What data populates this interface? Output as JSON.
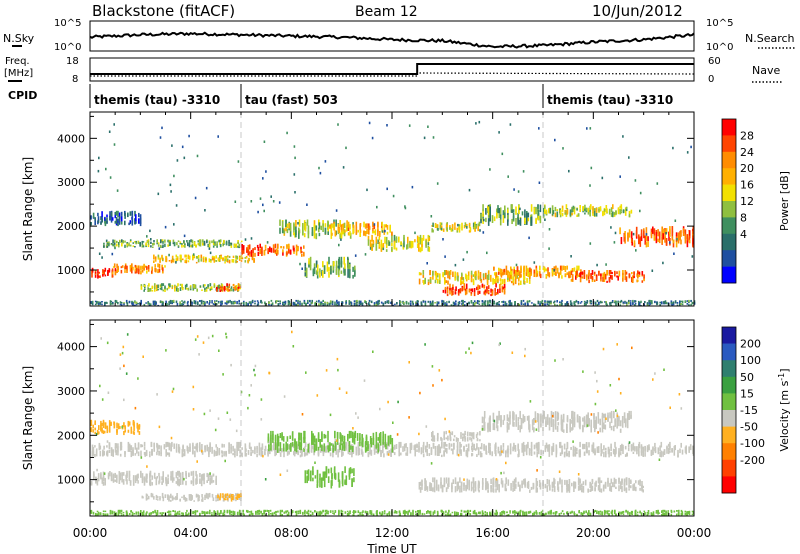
{
  "header": {
    "station": "Blackstone (fitACF)",
    "beam": "Beam 12",
    "date": "10/Jun/2012"
  },
  "top_panels": {
    "nsky_label": "N.Sky",
    "nsky_ticks": [
      "10^5",
      "10^0"
    ],
    "nsearch_label": "N.Search",
    "nsearch_ticks": [
      "10^5",
      "10^0"
    ],
    "freq_label": "Freq.",
    "freq_unit": "[MHz]",
    "freq_ticks": [
      "18",
      "8"
    ],
    "nave_label": "Nave",
    "nave_ticks": [
      "60",
      "0"
    ],
    "cpid_label": "CPID",
    "cpid_segments": [
      {
        "label": "themis (tau) -3310",
        "start": 0,
        "end": 6
      },
      {
        "label": "tau (fast) 503",
        "start": 6,
        "end": 18
      },
      {
        "label": "themis (tau) -3310",
        "start": 18,
        "end": 24
      }
    ]
  },
  "chart_data": [
    {
      "type": "heatmap",
      "name": "power",
      "xlabel": "Time UT",
      "ylabel": "Slant Range [km]",
      "xlim": [
        0,
        24
      ],
      "ylim": [
        180,
        4600
      ],
      "x_ticks": [
        "00:00",
        "04:00",
        "08:00",
        "12:00",
        "16:00",
        "20:00",
        "00:00"
      ],
      "y_ticks": [
        1000,
        2000,
        3000,
        4000
      ],
      "colorbar": {
        "label": "Power [dB]",
        "ticks": [
          "28",
          "24",
          "20",
          "16",
          "12",
          "8",
          "4"
        ],
        "colors": [
          "#ff0000",
          "#ff4400",
          "#ff8c00",
          "#ffb000",
          "#f2e000",
          "#8fbf3f",
          "#3f8f5f",
          "#2a6f6a",
          "#1f4fa0",
          "#0000ff"
        ]
      },
      "bands": [
        {
          "t0": 0.0,
          "t1": 1.0,
          "r0": 800,
          "r1": 1050,
          "v": 28
        },
        {
          "t0": 0.8,
          "t1": 3.0,
          "r0": 900,
          "r1": 1150,
          "v": 22
        },
        {
          "t0": 2.5,
          "t1": 6.5,
          "r0": 1150,
          "r1": 1350,
          "v": 18
        },
        {
          "t0": 0.5,
          "t1": 6.0,
          "r0": 1500,
          "r1": 1700,
          "v": 12
        },
        {
          "t0": 6.0,
          "t1": 8.5,
          "r0": 1300,
          "r1": 1600,
          "v": 24
        },
        {
          "t0": 7.5,
          "t1": 10.5,
          "r0": 1700,
          "r1": 2150,
          "v": 14
        },
        {
          "t0": 9.5,
          "t1": 12.0,
          "r0": 1750,
          "r1": 2100,
          "v": 20
        },
        {
          "t0": 11.0,
          "t1": 13.5,
          "r0": 1400,
          "r1": 1800,
          "v": 16
        },
        {
          "t0": 2.0,
          "t1": 6.0,
          "r0": 500,
          "r1": 700,
          "v": 14
        },
        {
          "t0": 5.0,
          "t1": 6.0,
          "r0": 500,
          "r1": 700,
          "v": 26
        },
        {
          "t0": 8.5,
          "t1": 10.5,
          "r0": 800,
          "r1": 1300,
          "v": 12
        },
        {
          "t0": 13.0,
          "t1": 17.5,
          "r0": 650,
          "r1": 1000,
          "v": 18
        },
        {
          "t0": 14.0,
          "t1": 16.5,
          "r0": 400,
          "r1": 700,
          "v": 26
        },
        {
          "t0": 16.0,
          "t1": 19.5,
          "r0": 800,
          "r1": 1100,
          "v": 20
        },
        {
          "t0": 19.0,
          "t1": 22.0,
          "r0": 700,
          "r1": 1000,
          "v": 24
        },
        {
          "t0": 13.5,
          "t1": 15.5,
          "r0": 1850,
          "r1": 2100,
          "v": 16
        },
        {
          "t0": 15.5,
          "t1": 18.0,
          "r0": 2000,
          "r1": 2500,
          "v": 12
        },
        {
          "t0": 18.0,
          "t1": 21.5,
          "r0": 2200,
          "r1": 2500,
          "v": 14
        },
        {
          "t0": 21.0,
          "t1": 24.0,
          "r0": 1500,
          "r1": 2000,
          "v": 24
        },
        {
          "t0": 0.0,
          "t1": 2.0,
          "r0": 2000,
          "r1": 2350,
          "v": 6
        },
        {
          "t0": 0.0,
          "t1": 24.0,
          "r0": 180,
          "r1": 320,
          "v": 8
        }
      ]
    },
    {
      "type": "heatmap",
      "name": "velocity",
      "xlabel": "Time UT",
      "ylabel": "Slant Range [km]",
      "xlim": [
        0,
        24
      ],
      "ylim": [
        180,
        4600
      ],
      "x_ticks": [
        "00:00",
        "04:00",
        "08:00",
        "12:00",
        "16:00",
        "20:00",
        "00:00"
      ],
      "y_ticks": [
        1000,
        2000,
        3000,
        4000
      ],
      "colorbar": {
        "label": "Velocity [m s",
        "label_exp": "-1",
        "label_end": "]",
        "ticks": [
          "200",
          "100",
          "50",
          "15",
          "-15",
          "-50",
          "-100",
          "-200"
        ],
        "colors": [
          "#1a1aa0",
          "#2a5ac0",
          "#2f7f6f",
          "#3aa040",
          "#70c040",
          "#c8c8c0",
          "#ffb020",
          "#ff8000",
          "#ff4000",
          "#ff0000"
        ]
      },
      "bands": [
        {
          "t0": 0.0,
          "t1": 24.0,
          "r0": 1500,
          "r1": 1850,
          "v": 0
        },
        {
          "t0": 0.0,
          "t1": 5.0,
          "r0": 850,
          "r1": 1200,
          "v": 0
        },
        {
          "t0": 2.0,
          "t1": 6.0,
          "r0": 500,
          "r1": 700,
          "v": 0
        },
        {
          "t0": 5.0,
          "t1": 6.0,
          "r0": 500,
          "r1": 700,
          "v": -40
        },
        {
          "t0": 8.5,
          "t1": 10.5,
          "r0": 800,
          "r1": 1300,
          "v": 40
        },
        {
          "t0": 13.0,
          "t1": 22.0,
          "r0": 700,
          "r1": 1050,
          "v": 0
        },
        {
          "t0": 13.5,
          "t1": 15.5,
          "r0": 1850,
          "r1": 2100,
          "v": 0
        },
        {
          "t0": 15.5,
          "t1": 21.5,
          "r0": 2050,
          "r1": 2550,
          "v": 0
        },
        {
          "t0": 0.0,
          "t1": 2.0,
          "r0": 2000,
          "r1": 2350,
          "v": -30
        },
        {
          "t0": 7.0,
          "t1": 12.0,
          "r0": 1600,
          "r1": 2100,
          "v": 30
        },
        {
          "t0": 0.0,
          "t1": 24.0,
          "r0": 180,
          "r1": 320,
          "v": 30
        }
      ]
    }
  ],
  "timeseries": {
    "nsky": [
      [
        0,
        0.45
      ],
      [
        2,
        0.55
      ],
      [
        4,
        0.6
      ],
      [
        6,
        0.55
      ],
      [
        8,
        0.5
      ],
      [
        10,
        0.45
      ],
      [
        12,
        0.35
      ],
      [
        14,
        0.3
      ],
      [
        16,
        0.05
      ],
      [
        18,
        0.1
      ],
      [
        20,
        0.25
      ],
      [
        22,
        0.35
      ],
      [
        24,
        0.55
      ]
    ],
    "freq_low_mhz": 10.5,
    "freq_high_mhz": 15.5,
    "freq_switch_time": 13.0
  },
  "xlabel": "Time UT"
}
